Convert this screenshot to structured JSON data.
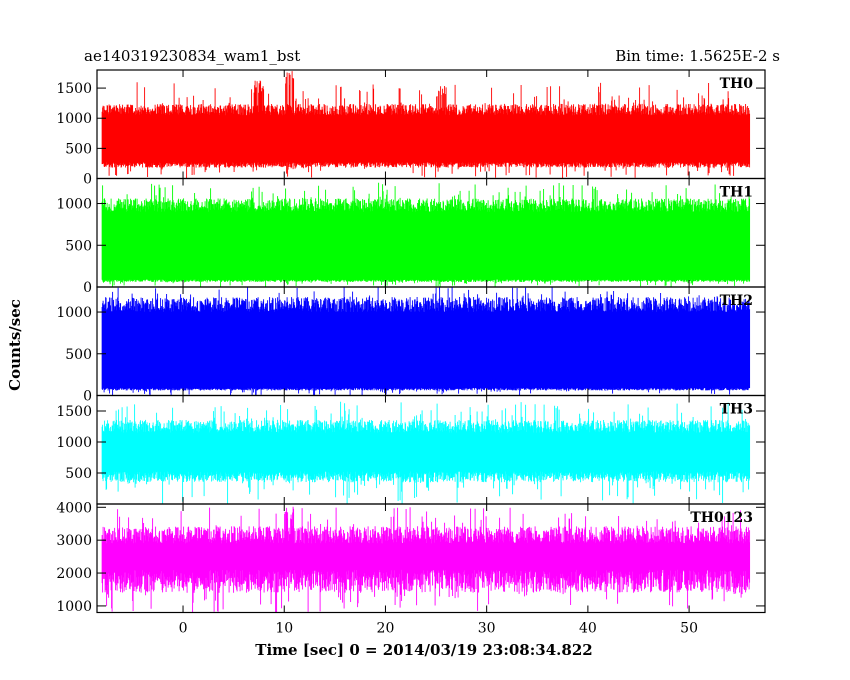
{
  "chart_data": {
    "type": "line",
    "title": "ae140319230834_wam1_bst",
    "subtitle": "Bin time: 1.5625E-2 s",
    "xlabel": "Time [sec] 0 = 2014/03/19 23:08:34.822",
    "ylabel": "Counts/sec",
    "xlim": [
      -8.5,
      57.5
    ],
    "xticks": [
      0,
      10,
      20,
      30,
      40,
      50
    ],
    "data_x_range": [
      -8,
      56
    ],
    "series": [
      {
        "name": "TH0",
        "color": "#ff0000",
        "ylim": [
          0,
          1800
        ],
        "yticks": [
          0,
          500,
          1000,
          1500
        ],
        "base_low": 180,
        "base_high": 1050,
        "peak_max": 1600,
        "features": [
          {
            "x": 7.5,
            "value": 1650
          },
          {
            "x": 10.5,
            "value": 1800
          },
          {
            "x": 25.5,
            "value": 1550
          }
        ]
      },
      {
        "name": "TH1",
        "color": "#00ff00",
        "ylim": [
          0,
          1300
        ],
        "yticks": [
          0,
          500,
          1000
        ],
        "base_low": 60,
        "base_high": 900,
        "peak_max": 1250,
        "features": []
      },
      {
        "name": "TH2",
        "color": "#0000ff",
        "ylim": [
          0,
          1300
        ],
        "yticks": [
          0,
          500,
          1000
        ],
        "base_low": 60,
        "base_high": 1000,
        "peak_max": 1300,
        "features": []
      },
      {
        "name": "TH3",
        "color": "#00ffff",
        "ylim": [
          0,
          1750
        ],
        "yticks": [
          500,
          1000,
          1500
        ],
        "base_low": 350,
        "base_high": 1150,
        "peak_max": 1650,
        "features": []
      },
      {
        "name": "TH0123",
        "color": "#ff00ff",
        "ylim": [
          800,
          4100
        ],
        "yticks": [
          1000,
          2000,
          3000,
          4000
        ],
        "base_low": 1400,
        "base_high": 2900,
        "peak_max": 4000,
        "features": [
          {
            "x": 10.5,
            "value": 4050
          }
        ]
      }
    ]
  }
}
